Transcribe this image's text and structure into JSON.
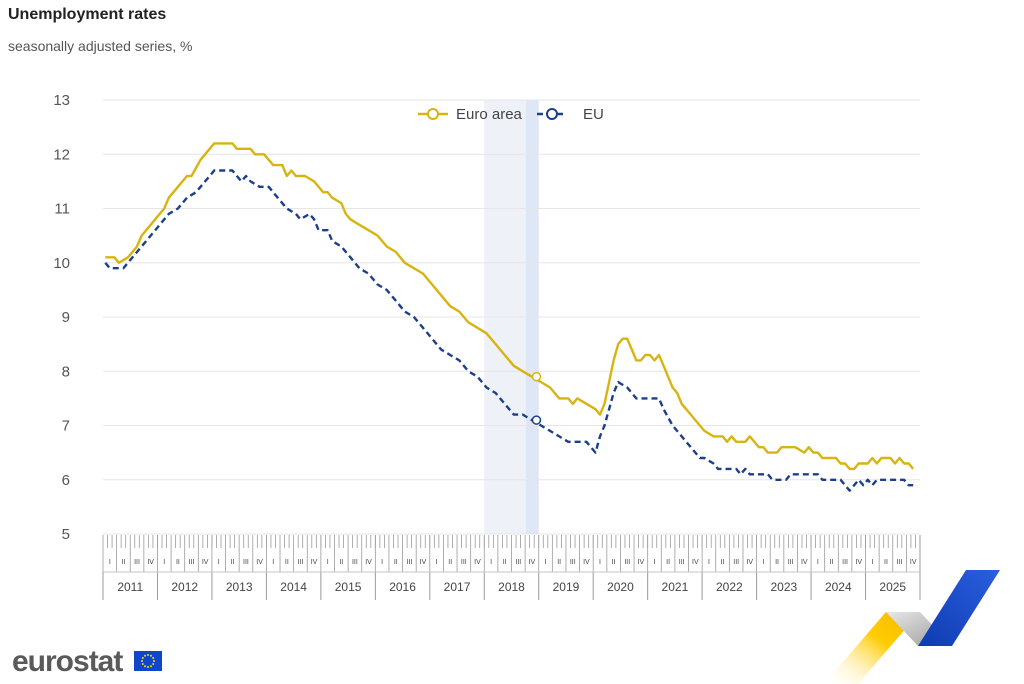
{
  "header": {
    "title": "Unemployment rates",
    "subtitle": "seasonally adjusted series, %"
  },
  "brand": {
    "name": "eurostat",
    "flag_color": "#0e47cb"
  },
  "colors": {
    "euro_area": "#d8b411",
    "eu": "#1d3f8a",
    "highlight": "#e8ecf7",
    "grid": "#e6e6e6"
  },
  "chart_data": {
    "type": "line",
    "title": "Unemployment rates",
    "subtitle": "seasonally adjusted series, %",
    "ylim": [
      5,
      13
    ],
    "yticks": [
      5,
      6,
      7,
      8,
      9,
      10,
      11,
      12,
      13
    ],
    "years": [
      "2011",
      "2012",
      "2013",
      "2014",
      "2015",
      "2016",
      "2017",
      "2018",
      "2019",
      "2020",
      "2021",
      "2022",
      "2023",
      "2024",
      "2025"
    ],
    "quarters": [
      "I",
      "II",
      "III",
      "IV"
    ],
    "grid": true,
    "legend_position": "top-center",
    "highlight_period": "2018",
    "series": [
      {
        "name": "Euro area",
        "style": "solid",
        "points": [
          [
            "2011-01",
            10.1
          ],
          [
            "2011-03",
            10.1
          ],
          [
            "2011-04",
            10.0
          ],
          [
            "2011-06",
            10.1
          ],
          [
            "2011-08",
            10.3
          ],
          [
            "2011-09",
            10.5
          ],
          [
            "2011-11",
            10.7
          ],
          [
            "2012-01",
            10.9
          ],
          [
            "2012-02",
            11.0
          ],
          [
            "2012-03",
            11.2
          ],
          [
            "2012-05",
            11.4
          ],
          [
            "2012-07",
            11.6
          ],
          [
            "2012-08",
            11.6
          ],
          [
            "2012-10",
            11.9
          ],
          [
            "2012-11",
            12.0
          ],
          [
            "2013-01",
            12.2
          ],
          [
            "2013-05",
            12.2
          ],
          [
            "2013-06",
            12.1
          ],
          [
            "2013-09",
            12.1
          ],
          [
            "2013-10",
            12.0
          ],
          [
            "2013-12",
            12.0
          ],
          [
            "2014-01",
            11.9
          ],
          [
            "2014-02",
            11.8
          ],
          [
            "2014-04",
            11.8
          ],
          [
            "2014-05",
            11.6
          ],
          [
            "2014-06",
            11.7
          ],
          [
            "2014-07",
            11.6
          ],
          [
            "2014-09",
            11.6
          ],
          [
            "2014-11",
            11.5
          ],
          [
            "2015-01",
            11.3
          ],
          [
            "2015-02",
            11.3
          ],
          [
            "2015-03",
            11.2
          ],
          [
            "2015-05",
            11.1
          ],
          [
            "2015-06",
            10.9
          ],
          [
            "2015-07",
            10.8
          ],
          [
            "2015-09",
            10.7
          ],
          [
            "2015-11",
            10.6
          ],
          [
            "2016-01",
            10.5
          ],
          [
            "2016-03",
            10.3
          ],
          [
            "2016-05",
            10.2
          ],
          [
            "2016-07",
            10.0
          ],
          [
            "2016-09",
            9.9
          ],
          [
            "2016-11",
            9.8
          ],
          [
            "2017-01",
            9.6
          ],
          [
            "2017-03",
            9.4
          ],
          [
            "2017-05",
            9.2
          ],
          [
            "2017-07",
            9.1
          ],
          [
            "2017-09",
            8.9
          ],
          [
            "2017-11",
            8.8
          ],
          [
            "2018-01",
            8.7
          ],
          [
            "2018-03",
            8.5
          ],
          [
            "2018-05",
            8.3
          ],
          [
            "2018-07",
            8.1
          ],
          [
            "2018-09",
            8.0
          ],
          [
            "2018-11",
            7.9
          ],
          [
            "2019-01",
            7.8
          ],
          [
            "2019-03",
            7.7
          ],
          [
            "2019-05",
            7.5
          ],
          [
            "2019-07",
            7.5
          ],
          [
            "2019-08",
            7.4
          ],
          [
            "2019-09",
            7.5
          ],
          [
            "2019-11",
            7.4
          ],
          [
            "2020-01",
            7.3
          ],
          [
            "2020-02",
            7.2
          ],
          [
            "2020-03",
            7.4
          ],
          [
            "2020-04",
            7.8
          ],
          [
            "2020-05",
            8.2
          ],
          [
            "2020-06",
            8.5
          ],
          [
            "2020-07",
            8.6
          ],
          [
            "2020-08",
            8.6
          ],
          [
            "2020-09",
            8.4
          ],
          [
            "2020-10",
            8.2
          ],
          [
            "2020-11",
            8.2
          ],
          [
            "2020-12",
            8.3
          ],
          [
            "2021-01",
            8.3
          ],
          [
            "2021-02",
            8.2
          ],
          [
            "2021-03",
            8.3
          ],
          [
            "2021-04",
            8.1
          ],
          [
            "2021-05",
            7.9
          ],
          [
            "2021-06",
            7.7
          ],
          [
            "2021-07",
            7.6
          ],
          [
            "2021-08",
            7.4
          ],
          [
            "2021-09",
            7.3
          ],
          [
            "2021-10",
            7.2
          ],
          [
            "2021-11",
            7.1
          ],
          [
            "2021-12",
            7.0
          ],
          [
            "2022-01",
            6.9
          ],
          [
            "2022-03",
            6.8
          ],
          [
            "2022-05",
            6.8
          ],
          [
            "2022-06",
            6.7
          ],
          [
            "2022-07",
            6.8
          ],
          [
            "2022-08",
            6.7
          ],
          [
            "2022-10",
            6.7
          ],
          [
            "2022-11",
            6.8
          ],
          [
            "2023-01",
            6.6
          ],
          [
            "2023-02",
            6.6
          ],
          [
            "2023-03",
            6.5
          ],
          [
            "2023-05",
            6.5
          ],
          [
            "2023-06",
            6.6
          ],
          [
            "2023-09",
            6.6
          ],
          [
            "2023-11",
            6.5
          ],
          [
            "2023-12",
            6.6
          ],
          [
            "2024-01",
            6.5
          ],
          [
            "2024-02",
            6.5
          ],
          [
            "2024-03",
            6.4
          ],
          [
            "2024-06",
            6.4
          ],
          [
            "2024-07",
            6.3
          ],
          [
            "2024-08",
            6.3
          ],
          [
            "2024-09",
            6.2
          ],
          [
            "2024-10",
            6.2
          ],
          [
            "2024-11",
            6.3
          ],
          [
            "2025-01",
            6.3
          ],
          [
            "2025-02",
            6.4
          ],
          [
            "2025-03",
            6.3
          ],
          [
            "2025-04",
            6.4
          ],
          [
            "2025-06",
            6.4
          ],
          [
            "2025-07",
            6.3
          ],
          [
            "2025-08",
            6.4
          ],
          [
            "2025-09",
            6.3
          ],
          [
            "2025-10",
            6.3
          ],
          [
            "2025-11",
            6.2
          ]
        ]
      },
      {
        "name": "EU",
        "style": "dashed",
        "points": [
          [
            "2011-01",
            10.0
          ],
          [
            "2011-02",
            9.9
          ],
          [
            "2011-03",
            9.9
          ],
          [
            "2011-05",
            9.9
          ],
          [
            "2011-07",
            10.1
          ],
          [
            "2011-09",
            10.3
          ],
          [
            "2011-11",
            10.5
          ],
          [
            "2012-01",
            10.7
          ],
          [
            "2012-03",
            10.9
          ],
          [
            "2012-05",
            11.0
          ],
          [
            "2012-07",
            11.2
          ],
          [
            "2012-09",
            11.3
          ],
          [
            "2012-11",
            11.5
          ],
          [
            "2012-12",
            11.6
          ],
          [
            "2013-01",
            11.7
          ],
          [
            "2013-05",
            11.7
          ],
          [
            "2013-06",
            11.6
          ],
          [
            "2013-07",
            11.5
          ],
          [
            "2013-08",
            11.6
          ],
          [
            "2013-09",
            11.5
          ],
          [
            "2013-11",
            11.4
          ],
          [
            "2014-01",
            11.4
          ],
          [
            "2014-03",
            11.2
          ],
          [
            "2014-05",
            11.0
          ],
          [
            "2014-07",
            10.9
          ],
          [
            "2014-08",
            10.8
          ],
          [
            "2014-10",
            10.9
          ],
          [
            "2014-11",
            10.8
          ],
          [
            "2014-12",
            10.6
          ],
          [
            "2015-02",
            10.6
          ],
          [
            "2015-03",
            10.4
          ],
          [
            "2015-05",
            10.3
          ],
          [
            "2015-07",
            10.1
          ],
          [
            "2015-09",
            9.9
          ],
          [
            "2015-11",
            9.8
          ],
          [
            "2016-01",
            9.6
          ],
          [
            "2016-03",
            9.5
          ],
          [
            "2016-05",
            9.3
          ],
          [
            "2016-07",
            9.1
          ],
          [
            "2016-09",
            9.0
          ],
          [
            "2016-11",
            8.8
          ],
          [
            "2017-01",
            8.6
          ],
          [
            "2017-03",
            8.4
          ],
          [
            "2017-05",
            8.3
          ],
          [
            "2017-07",
            8.2
          ],
          [
            "2017-09",
            8.0
          ],
          [
            "2017-11",
            7.9
          ],
          [
            "2018-01",
            7.7
          ],
          [
            "2018-03",
            7.6
          ],
          [
            "2018-05",
            7.4
          ],
          [
            "2018-07",
            7.2
          ],
          [
            "2018-09",
            7.2
          ],
          [
            "2018-11",
            7.1
          ],
          [
            "2019-01",
            7.0
          ],
          [
            "2019-03",
            6.9
          ],
          [
            "2019-05",
            6.8
          ],
          [
            "2019-07",
            6.7
          ],
          [
            "2019-09",
            6.7
          ],
          [
            "2019-11",
            6.7
          ],
          [
            "2019-12",
            6.6
          ],
          [
            "2020-01",
            6.5
          ],
          [
            "2020-02",
            6.8
          ],
          [
            "2020-03",
            7.0
          ],
          [
            "2020-04",
            7.3
          ],
          [
            "2020-05",
            7.6
          ],
          [
            "2020-06",
            7.8
          ],
          [
            "2020-08",
            7.7
          ],
          [
            "2020-10",
            7.5
          ],
          [
            "2020-11",
            7.5
          ],
          [
            "2021-01",
            7.5
          ],
          [
            "2021-03",
            7.5
          ],
          [
            "2021-04",
            7.3
          ],
          [
            "2021-06",
            7.0
          ],
          [
            "2021-08",
            6.8
          ],
          [
            "2021-10",
            6.6
          ],
          [
            "2021-12",
            6.4
          ],
          [
            "2022-01",
            6.4
          ],
          [
            "2022-03",
            6.3
          ],
          [
            "2022-04",
            6.2
          ],
          [
            "2022-08",
            6.2
          ],
          [
            "2022-09",
            6.1
          ],
          [
            "2022-10",
            6.2
          ],
          [
            "2022-11",
            6.1
          ],
          [
            "2023-01",
            6.1
          ],
          [
            "2023-03",
            6.1
          ],
          [
            "2023-04",
            6.0
          ],
          [
            "2023-07",
            6.0
          ],
          [
            "2023-08",
            6.1
          ],
          [
            "2024-02",
            6.1
          ],
          [
            "2024-03",
            6.0
          ],
          [
            "2024-07",
            6.0
          ],
          [
            "2024-08",
            5.9
          ],
          [
            "2024-09",
            5.8
          ],
          [
            "2024-10",
            5.9
          ],
          [
            "2024-11",
            6.0
          ],
          [
            "2024-12",
            5.9
          ],
          [
            "2025-01",
            6.0
          ],
          [
            "2025-02",
            5.9
          ],
          [
            "2025-03",
            6.0
          ],
          [
            "2025-09",
            6.0
          ],
          [
            "2025-10",
            5.9
          ],
          [
            "2025-11",
            5.9
          ]
        ]
      }
    ],
    "markers": [
      {
        "series": "Euro area",
        "x": "2018-12",
        "y": 7.9
      },
      {
        "series": "EU",
        "x": "2018-12",
        "y": 7.1
      }
    ]
  }
}
